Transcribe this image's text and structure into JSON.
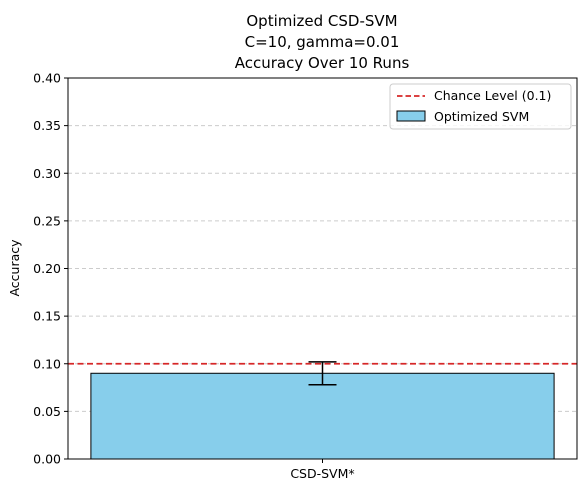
{
  "chart_data": {
    "type": "bar",
    "title": [
      "Optimized CSD-SVM",
      "C=10, gamma=0.01",
      "Accuracy Over 10 Runs"
    ],
    "xlabel": "",
    "ylabel": "Accuracy",
    "ylim": [
      0.0,
      0.4
    ],
    "yticks": [
      0.0,
      0.05,
      0.1,
      0.15,
      0.2,
      0.25,
      0.3,
      0.35,
      0.4
    ],
    "ytick_labels": [
      "0.00",
      "0.05",
      "0.10",
      "0.15",
      "0.20",
      "0.25",
      "0.30",
      "0.35",
      "0.40"
    ],
    "categories": [
      "CSD-SVM*"
    ],
    "series": [
      {
        "name": "Optimized SVM",
        "values": [
          0.09
        ],
        "error": [
          0.012
        ],
        "color": "#87CEEB",
        "edgecolor": "#000000"
      }
    ],
    "reference_line": {
      "name": "Chance Level (0.1)",
      "value": 0.1,
      "color": "#d62728",
      "style": "dashed"
    },
    "grid": {
      "y": true,
      "x": false,
      "style": "dashed"
    },
    "legend": {
      "placement": "top-right"
    }
  }
}
